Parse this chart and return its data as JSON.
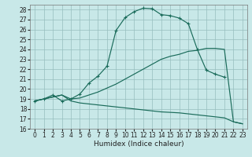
{
  "xlabel": "Humidex (Indice chaleur)",
  "xlim": [
    -0.5,
    23.5
  ],
  "ylim": [
    16,
    28.5
  ],
  "yticks": [
    16,
    17,
    18,
    19,
    20,
    21,
    22,
    23,
    24,
    25,
    26,
    27,
    28
  ],
  "xticks": [
    0,
    1,
    2,
    3,
    4,
    5,
    6,
    7,
    8,
    9,
    10,
    11,
    12,
    13,
    14,
    15,
    16,
    17,
    18,
    19,
    20,
    21,
    22,
    23
  ],
  "background_color": "#c8e8e8",
  "grid_color": "#96bebe",
  "line_color": "#1a6b5a",
  "curve1_x": [
    0,
    1,
    2,
    3,
    4,
    5,
    6,
    7,
    8,
    9,
    10,
    11,
    12,
    13,
    14,
    15,
    16,
    17,
    18,
    19,
    20,
    21
  ],
  "curve1_y": [
    18.8,
    19.0,
    19.4,
    18.8,
    19.0,
    19.5,
    20.6,
    21.3,
    22.3,
    25.9,
    27.2,
    27.8,
    28.15,
    28.1,
    27.5,
    27.4,
    27.15,
    26.6,
    24.0,
    21.9,
    21.5,
    21.2
  ],
  "curve2_x": [
    0,
    3,
    4,
    5,
    6,
    7,
    8,
    9,
    10,
    11,
    12,
    13,
    14,
    15,
    16,
    17,
    18,
    19,
    20,
    21,
    22,
    23
  ],
  "curve2_y": [
    18.8,
    19.4,
    19.0,
    19.1,
    19.4,
    19.7,
    20.1,
    20.5,
    21.0,
    21.5,
    22.0,
    22.5,
    23.0,
    23.3,
    23.5,
    23.8,
    23.9,
    24.1,
    24.1,
    24.0,
    16.7,
    16.5
  ],
  "curve3_x": [
    0,
    3,
    4,
    5,
    6,
    7,
    8,
    9,
    10,
    11,
    12,
    13,
    14,
    15,
    16,
    17,
    18,
    19,
    20,
    21,
    22,
    23
  ],
  "curve3_y": [
    18.8,
    19.4,
    18.8,
    18.6,
    18.5,
    18.4,
    18.3,
    18.2,
    18.1,
    18.0,
    17.9,
    17.8,
    17.7,
    17.65,
    17.6,
    17.5,
    17.4,
    17.3,
    17.2,
    17.1,
    16.7,
    16.5
  ],
  "title_fontsize": 7,
  "tick_fontsize": 5.5,
  "label_fontsize": 6.5
}
